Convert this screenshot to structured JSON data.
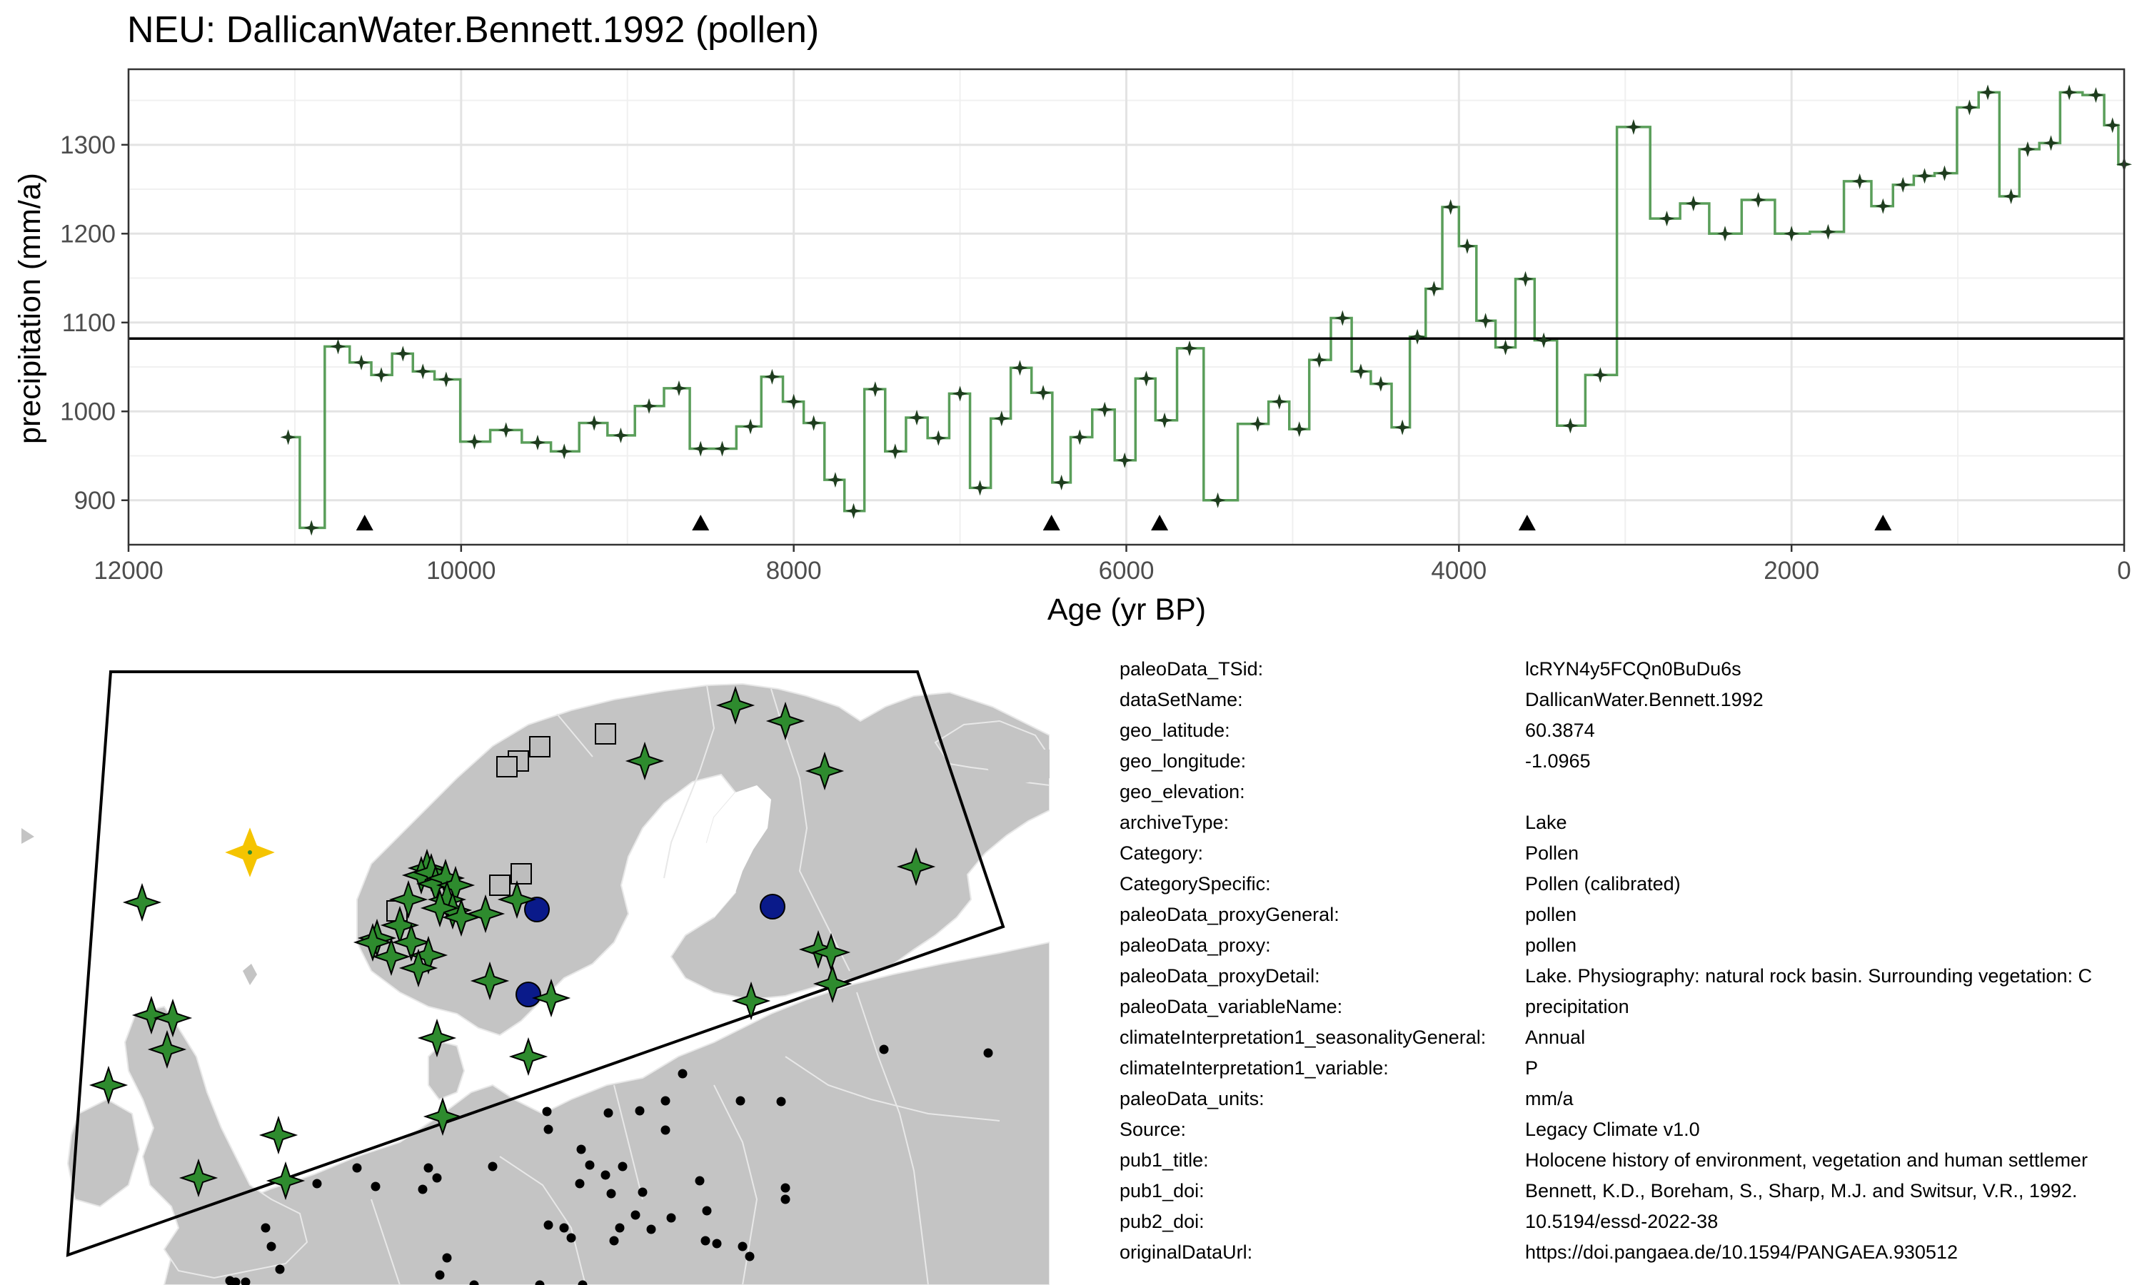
{
  "chart_data": {
    "type": "line",
    "title": "NEU: DallicanWater.Bennett.1992 (pollen)",
    "xlabel": "Age (yr BP)",
    "ylabel": "precipitation (mm/a)",
    "xlim": [
      12000,
      0
    ],
    "ylim": [
      850,
      1385
    ],
    "x_reversed": true,
    "step": true,
    "grid": true,
    "xticks": [
      12000,
      10000,
      8000,
      6000,
      4000,
      2000,
      0
    ],
    "xtick_labels": [
      "12000",
      "10000",
      "8000",
      "6000",
      "4000",
      "2000",
      "0"
    ],
    "yticks": [
      900,
      1000,
      1100,
      1200,
      1300
    ],
    "ytick_labels": [
      "900",
      "1000",
      "1100",
      "1200",
      "1300"
    ],
    "mean_line": 1082,
    "series": [
      {
        "color": "#5a9e5a",
        "marker_color": "#1e3d1e",
        "x": [
          11040,
          10900,
          10740,
          10600,
          10480,
          10350,
          10230,
          10090,
          9920,
          9730,
          9540,
          9380,
          9200,
          9040,
          8870,
          8690,
          8560,
          8430,
          8260,
          8130,
          8000,
          7880,
          7750,
          7640,
          7510,
          7390,
          7260,
          7130,
          7000,
          6880,
          6750,
          6640,
          6500,
          6390,
          6280,
          6130,
          6010,
          5880,
          5770,
          5620,
          5450,
          5210,
          5080,
          4960,
          4840,
          4700,
          4590,
          4470,
          4340,
          4250,
          4150,
          4050,
          3950,
          3840,
          3720,
          3600,
          3490,
          3330,
          3150,
          2950,
          2750,
          2590,
          2400,
          2200,
          2000,
          1780,
          1590,
          1450,
          1330,
          1200,
          1080,
          930,
          820,
          680,
          580,
          440,
          330,
          170,
          70,
          0
        ],
        "y": [
          971,
          869,
          1073,
          1055,
          1041,
          1065,
          1045,
          1036,
          966,
          979,
          965,
          955,
          987,
          973,
          1006,
          1026,
          958,
          958,
          983,
          1039,
          1011,
          987,
          923,
          888,
          1025,
          955,
          993,
          970,
          1020,
          914,
          992,
          1049,
          1021,
          920,
          971,
          1002,
          945,
          1037,
          990,
          1071,
          900,
          986,
          1011,
          980,
          1058,
          1105,
          1045,
          1031,
          982,
          1084,
          1138,
          1230,
          1186,
          1102,
          1072,
          1149,
          1080,
          984,
          1041,
          1320,
          1217,
          1234,
          1200,
          1238,
          1200,
          1202,
          1259,
          1231,
          1255,
          1265,
          1268,
          1342,
          1359,
          1242,
          1295,
          1302,
          1359,
          1356,
          1322,
          1278
        ]
      }
    ],
    "triangles_x": [
      10580,
      8560,
      6450,
      5800,
      3590,
      1450
    ]
  },
  "metadata": [
    {
      "key": "paleoData_TSid:",
      "value": "lcRYN4y5FCQn0BuDu6s"
    },
    {
      "key": "dataSetName:",
      "value": "DallicanWater.Bennett.1992"
    },
    {
      "key": "geo_latitude:",
      "value": "60.3874"
    },
    {
      "key": "geo_longitude:",
      "value": "-1.0965"
    },
    {
      "key": "geo_elevation:",
      "value": ""
    },
    {
      "key": "archiveType:",
      "value": "Lake"
    },
    {
      "key": "Category:",
      "value": "Pollen"
    },
    {
      "key": "CategorySpecific:",
      "value": "Pollen (calibrated)"
    },
    {
      "key": "paleoData_proxyGeneral:",
      "value": "pollen"
    },
    {
      "key": "paleoData_proxy:",
      "value": "pollen"
    },
    {
      "key": "paleoData_proxyDetail:",
      "value": "Lake. Physiography: natural rock basin. Surrounding vegetation: C"
    },
    {
      "key": "paleoData_variableName:",
      "value": "precipitation"
    },
    {
      "key": "climateInterpretation1_seasonalityGeneral:",
      "value": "Annual"
    },
    {
      "key": "climateInterpretation1_variable:",
      "value": "P"
    },
    {
      "key": "paleoData_units:",
      "value": "mm/a"
    },
    {
      "key": "Source:",
      "value": "Legacy Climate v1.0"
    },
    {
      "key": "pub1_title:",
      "value": "Holocene history of environment, vegetation and human settlemer"
    },
    {
      "key": "pub1_doi:",
      "value": "Bennett, K.D., Boreham, S., Sharp, M.J. and Switsur, V.R., 1992."
    },
    {
      "key": "pub2_doi:",
      "value": "10.5194/essd-2022-38"
    },
    {
      "key": "originalDataUrl:",
      "value": "https://doi.pangaea.de/10.1594/PANGAEA.930512"
    }
  ],
  "map": {
    "land_color": "#c4c4c4",
    "border_color": "#e8e8e8",
    "star_color": "#2e8b2e",
    "highlight_color": "#f5c400",
    "circle_color": "#0a1a8a",
    "square_color": "#bdbdbd",
    "dot_color": "#000000"
  }
}
